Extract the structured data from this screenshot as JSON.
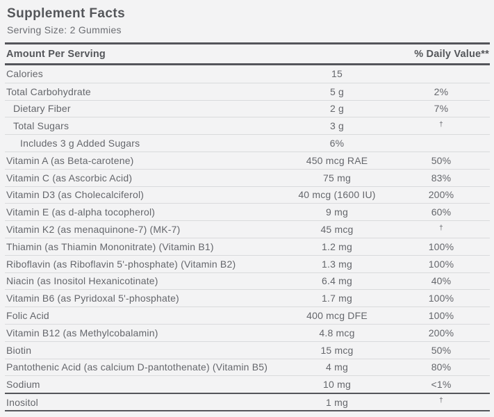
{
  "label": {
    "title": "Supplement Facts",
    "serving_size": "Serving Size: 2 Gummies"
  },
  "table": {
    "header": {
      "amount_per_serving": "Amount Per Serving",
      "daily_value": "% Daily Value**"
    },
    "rows": [
      {
        "name": "Calories",
        "amount": "15",
        "dv": "",
        "indent": 0
      },
      {
        "name": "Total Carbohydrate",
        "amount": "5 g",
        "dv": "2%",
        "indent": 0
      },
      {
        "name": "Dietary Fiber",
        "amount": "2 g",
        "dv": "7%",
        "indent": 1
      },
      {
        "name": "Total Sugars",
        "amount": "3 g",
        "dv": "†",
        "dv_dagger": true,
        "indent": 1
      },
      {
        "name": "Includes 3 g Added Sugars",
        "amount": "6%",
        "dv": "",
        "indent": 2
      },
      {
        "name": "Vitamin A (as Beta-carotene)",
        "amount": "450 mcg RAE",
        "dv": "50%",
        "indent": 0
      },
      {
        "name": "Vitamin C (as Ascorbic Acid)",
        "amount": "75 mg",
        "dv": "83%",
        "indent": 0
      },
      {
        "name": "Vitamin D3 (as Cholecalciferol)",
        "amount": "40 mcg (1600 IU)",
        "dv": "200%",
        "indent": 0
      },
      {
        "name": "Vitamin E (as d-alpha tocopherol)",
        "amount": "9 mg",
        "dv": "60%",
        "indent": 0
      },
      {
        "name": "Vitamin K2 (as menaquinone-7) (MK-7)",
        "amount": "45 mcg",
        "dv": "†",
        "dv_dagger": true,
        "indent": 0
      },
      {
        "name": "Thiamin (as Thiamin Mononitrate) (Vitamin B1)",
        "amount": "1.2 mg",
        "dv": "100%",
        "indent": 0
      },
      {
        "name": "Riboflavin (as Riboflavin 5'-phosphate) (Vitamin B2)",
        "amount": "1.3 mg",
        "dv": "100%",
        "indent": 0
      },
      {
        "name": "Niacin (as Inositol Hexanicotinate)",
        "amount": "6.4 mg",
        "dv": "40%",
        "indent": 0
      },
      {
        "name": "Vitamin B6 (as Pyridoxal 5'-phosphate)",
        "amount": "1.7 mg",
        "dv": "100%",
        "indent": 0
      },
      {
        "name": "Folic Acid",
        "amount": "400 mcg DFE",
        "dv": "100%",
        "indent": 0
      },
      {
        "name": "Vitamin B12 (as Methylcobalamin)",
        "amount": "4.8 mcg",
        "dv": "200%",
        "indent": 0
      },
      {
        "name": "Biotin",
        "amount": "15 mcg",
        "dv": "50%",
        "indent": 0
      },
      {
        "name": "Pantothenic Acid (as calcium D-pantothenate) (Vitamin B5)",
        "amount": "4 mg",
        "dv": "80%",
        "indent": 0
      },
      {
        "name": "Sodium",
        "amount": "10 mg",
        "dv": "<1%",
        "indent": 0
      },
      {
        "name": "Inositol",
        "amount": "1 mg",
        "dv": "†",
        "dv_dagger": true,
        "indent": 0,
        "section_break_before": true
      }
    ]
  },
  "colors": {
    "background": "#f3f3f4",
    "text_primary": "#54565a",
    "text_secondary": "#6b6d72",
    "row_text": "#64666b",
    "divider_thin": "#d9dadc",
    "divider_thick": "#54555a"
  }
}
